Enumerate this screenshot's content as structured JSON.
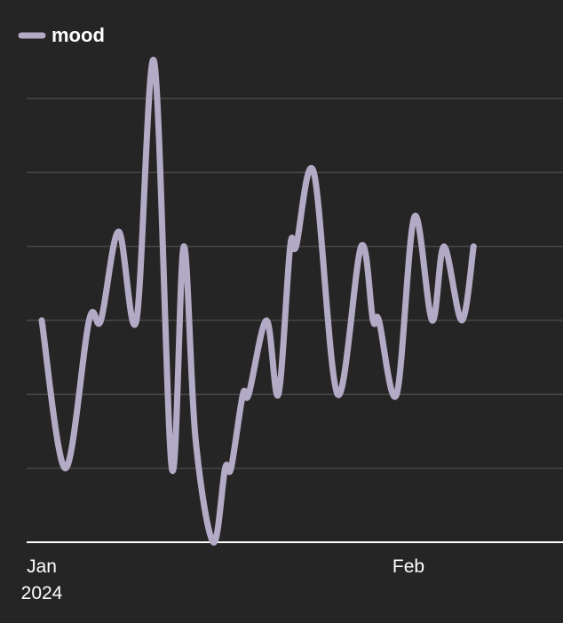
{
  "chart_data": {
    "type": "line",
    "title": "",
    "xlabel": "",
    "ylabel": "",
    "legend": {
      "placement": "top-left",
      "entries": [
        "mood"
      ]
    },
    "grid": {
      "horizontal": true,
      "vertical": false
    },
    "x_ticks": [
      {
        "label": "Jan",
        "sublabel": "2024",
        "day": 1
      },
      {
        "label": "Feb",
        "day": 32
      }
    ],
    "xlim": [
      1,
      41
    ],
    "ylim": [
      0,
      6
    ],
    "y_gridlines": [
      1,
      2,
      3,
      4,
      5,
      6
    ],
    "series": [
      {
        "name": "mood",
        "color": "#b3aac6",
        "values": [
          {
            "day": 1,
            "y": 3
          },
          {
            "day": 3,
            "y": 1
          },
          {
            "day": 5,
            "y": 3
          },
          {
            "day": 6,
            "y": 3
          },
          {
            "day": 7.5,
            "y": 4.2
          },
          {
            "day": 9,
            "y": 3
          },
          {
            "day": 10.5,
            "y": 6.5
          },
          {
            "day": 12,
            "y": 1
          },
          {
            "day": 13,
            "y": 4
          },
          {
            "day": 14,
            "y": 1.4
          },
          {
            "day": 15.5,
            "y": 0
          },
          {
            "day": 16.5,
            "y": 1
          },
          {
            "day": 17,
            "y": 1
          },
          {
            "day": 18,
            "y": 2
          },
          {
            "day": 18.5,
            "y": 2
          },
          {
            "day": 20,
            "y": 3
          },
          {
            "day": 21,
            "y": 2
          },
          {
            "day": 22,
            "y": 4
          },
          {
            "day": 22.5,
            "y": 4
          },
          {
            "day": 24,
            "y": 5
          },
          {
            "day": 26,
            "y": 2
          },
          {
            "day": 28,
            "y": 4
          },
          {
            "day": 29,
            "y": 3
          },
          {
            "day": 29.5,
            "y": 3
          },
          {
            "day": 31,
            "y": 2
          },
          {
            "day": 32.5,
            "y": 4.4
          },
          {
            "day": 34,
            "y": 3
          },
          {
            "day": 35,
            "y": 4
          },
          {
            "day": 36.5,
            "y": 3
          },
          {
            "day": 37.5,
            "y": 4
          }
        ]
      }
    ]
  }
}
